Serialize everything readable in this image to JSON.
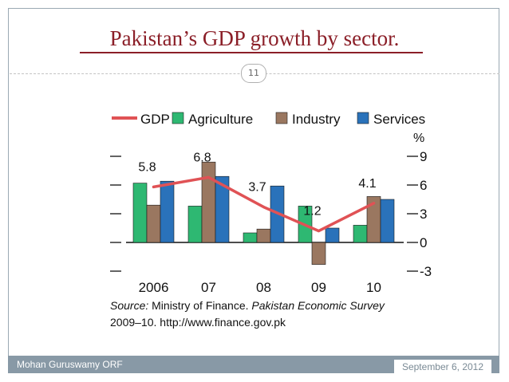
{
  "slide": {
    "title": "Pakistan’s GDP growth by sector.",
    "number": "11",
    "footer_left": "Mohan Guruswamy ORF",
    "footer_right": "September 6, 2012"
  },
  "chart_data": {
    "type": "bar",
    "categories": [
      "2006",
      "07",
      "08",
      "09",
      "10"
    ],
    "series": [
      {
        "name": "Agriculture",
        "values": [
          6.2,
          3.8,
          1.0,
          3.8,
          1.8
        ],
        "color": "#2eb872"
      },
      {
        "name": "Industry",
        "values": [
          3.9,
          8.4,
          1.4,
          -2.3,
          4.8
        ],
        "color": "#9a7760"
      },
      {
        "name": "Services",
        "values": [
          6.4,
          6.9,
          5.9,
          1.5,
          4.5
        ],
        "color": "#2a72ba"
      }
    ],
    "line": {
      "name": "GDP",
      "values": [
        5.8,
        6.8,
        3.7,
        1.2,
        4.1
      ],
      "color": "#e05255"
    },
    "gdp_labels": [
      "5.8",
      "6.8",
      "3.7",
      "1.2",
      "4.1"
    ],
    "y_ticks": [
      "9",
      "6",
      "3",
      "0",
      "-3"
    ],
    "y_tick_values": [
      9,
      6,
      3,
      0,
      -3
    ],
    "ylim": [
      -3,
      9
    ],
    "ylabel": "%",
    "source_line1_prefix": "Source:",
    "source_line1_rest": " Ministry of Finance. ",
    "source_line1_italic": "Pakistan Economic Survey",
    "source_line2": "2009–10. http://www.finance.gov.pk"
  }
}
